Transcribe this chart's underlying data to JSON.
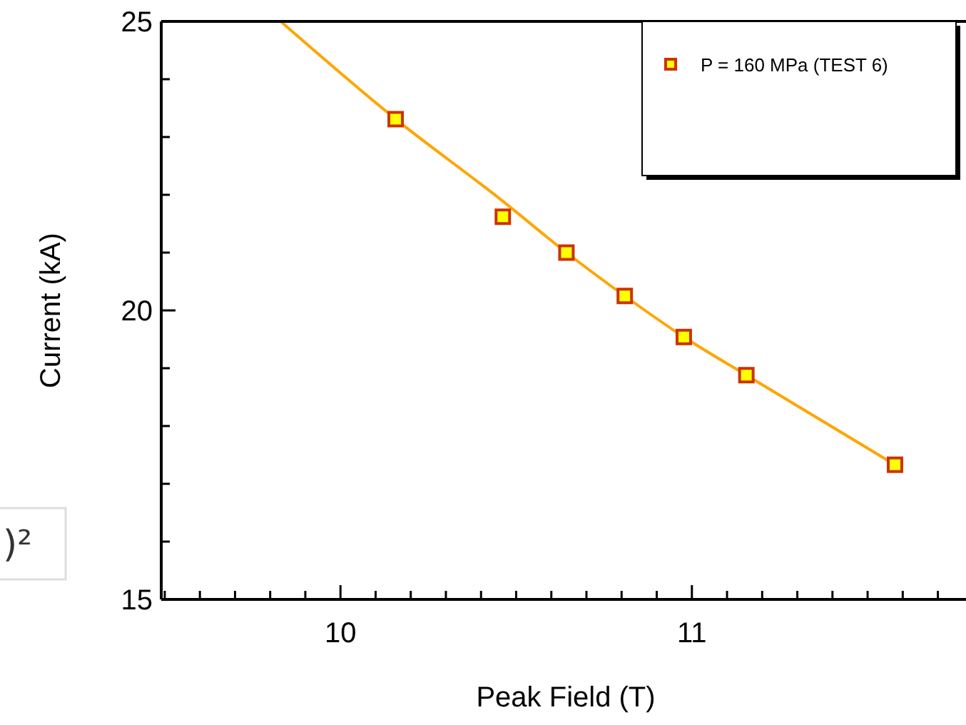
{
  "chart_data": {
    "type": "scatter",
    "xlabel": "Peak Field (T)",
    "ylabel": "Current (kA)",
    "xlim": [
      9.49,
      11.78
    ],
    "ylim": [
      15,
      25
    ],
    "xticks": [
      {
        "value": 9.5,
        "label": null
      },
      {
        "value": 9.6,
        "label": null
      },
      {
        "value": 9.7,
        "label": null
      },
      {
        "value": 9.8,
        "label": null
      },
      {
        "value": 9.9,
        "label": null
      },
      10,
      {
        "value": 10.1,
        "label": null
      },
      {
        "value": 10.2,
        "label": null
      },
      {
        "value": 10.3,
        "label": null
      },
      {
        "value": 10.4,
        "label": null
      },
      {
        "value": 10.5,
        "label": null
      },
      {
        "value": 10.6,
        "label": null
      },
      {
        "value": 10.7,
        "label": null
      },
      {
        "value": 10.8,
        "label": null
      },
      {
        "value": 10.9,
        "label": null
      },
      11,
      {
        "value": 11.1,
        "label": null
      },
      {
        "value": 11.2,
        "label": null
      },
      {
        "value": 11.3,
        "label": null
      },
      {
        "value": 11.4,
        "label": null
      },
      {
        "value": 11.5,
        "label": null
      },
      {
        "value": 11.6,
        "label": null
      },
      {
        "value": 11.7,
        "label": null
      }
    ],
    "yticks": [
      15,
      {
        "value": 16,
        "label": null
      },
      {
        "value": 17,
        "label": null
      },
      {
        "value": 18,
        "label": null
      },
      {
        "value": 19,
        "label": null
      },
      20,
      {
        "value": 21,
        "label": null
      },
      {
        "value": 22,
        "label": null
      },
      {
        "value": 23,
        "label": null
      },
      {
        "value": 24,
        "label": null
      },
      25
    ],
    "series": [
      {
        "type": "line",
        "color": "#ffa500",
        "x": [
          9.83,
          10.157,
          10.46,
          10.643,
          10.809,
          10.977,
          11.155,
          11.578
        ],
        "values": [
          25,
          23.31,
          21.9,
          21.0,
          20.25,
          19.54,
          18.88,
          17.33
        ]
      },
      {
        "name": "P = 160 MPa (TEST 6)",
        "color": "#ffff00",
        "marker": "square",
        "x": [
          10.157,
          10.462,
          10.643,
          10.809,
          10.977,
          11.155,
          11.578
        ],
        "values": [
          23.31,
          21.62,
          21.0,
          20.25,
          19.54,
          18.88,
          17.33
        ]
      }
    ],
    "legend": "top right",
    "grid": false,
    "annotations": [
      ")²"
    ]
  }
}
